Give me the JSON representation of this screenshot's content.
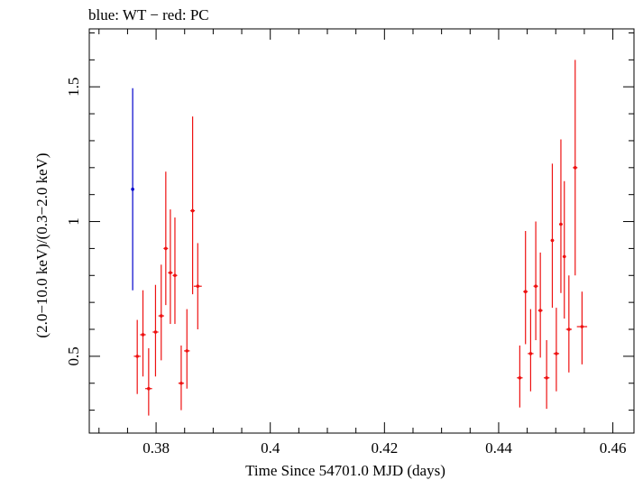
{
  "chart_data": {
    "type": "scatter",
    "title": "blue: WT − red: PC",
    "xlabel": "Time Since 54701.0 MJD (days)",
    "ylabel": "(2.0−10.0 keV)/(0.3−2.0 keV)",
    "xlim": [
      0.3683,
      0.4637
    ],
    "ylim": [
      0.215,
      1.715
    ],
    "x_ticks": [
      0.38,
      0.4,
      0.42,
      0.44,
      0.46
    ],
    "x_tick_labels": [
      "0.38",
      "0.4",
      "0.42",
      "0.44",
      "0.46"
    ],
    "y_ticks": [
      0.5,
      1,
      1.5
    ],
    "y_tick_labels": [
      "0.5",
      "1",
      "1.5"
    ],
    "grid": false,
    "series": [
      {
        "name": "WT",
        "color": "#0000cc",
        "points": [
          {
            "x": 0.3759,
            "y": 1.12,
            "ylo": 0.745,
            "yhi": 1.495,
            "xerr": 0.0
          }
        ]
      },
      {
        "name": "PC",
        "color": "#ee1111",
        "points": [
          {
            "x": 0.3767,
            "y": 0.5,
            "ylo": 0.36,
            "yhi": 0.635,
            "xerr": 0.0006
          },
          {
            "x": 0.3777,
            "y": 0.58,
            "ylo": 0.425,
            "yhi": 0.745,
            "xerr": 0.0005
          },
          {
            "x": 0.3787,
            "y": 0.38,
            "ylo": 0.28,
            "yhi": 0.53,
            "xerr": 0.0006
          },
          {
            "x": 0.3799,
            "y": 0.59,
            "ylo": 0.425,
            "yhi": 0.765,
            "xerr": 0.0005
          },
          {
            "x": 0.3809,
            "y": 0.65,
            "ylo": 0.485,
            "yhi": 0.84,
            "xerr": 0.0005
          },
          {
            "x": 0.3817,
            "y": 0.9,
            "ylo": 0.69,
            "yhi": 1.185,
            "xerr": 0.0004
          },
          {
            "x": 0.3825,
            "y": 0.81,
            "ylo": 0.62,
            "yhi": 1.045,
            "xerr": 0.0004
          },
          {
            "x": 0.3833,
            "y": 0.8,
            "ylo": 0.62,
            "yhi": 1.015,
            "xerr": 0.0004
          },
          {
            "x": 0.3844,
            "y": 0.4,
            "ylo": 0.3,
            "yhi": 0.54,
            "xerr": 0.0005
          },
          {
            "x": 0.3854,
            "y": 0.52,
            "ylo": 0.38,
            "yhi": 0.675,
            "xerr": 0.0005
          },
          {
            "x": 0.3864,
            "y": 1.04,
            "ylo": 0.73,
            "yhi": 1.39,
            "xerr": 0.0004
          },
          {
            "x": 0.3873,
            "y": 0.76,
            "ylo": 0.6,
            "yhi": 0.92,
            "xerr": 0.0007
          },
          {
            "x": 0.4437,
            "y": 0.42,
            "ylo": 0.31,
            "yhi": 0.54,
            "xerr": 0.0005
          },
          {
            "x": 0.4447,
            "y": 0.74,
            "ylo": 0.545,
            "yhi": 0.965,
            "xerr": 0.0004
          },
          {
            "x": 0.4456,
            "y": 0.51,
            "ylo": 0.37,
            "yhi": 0.675,
            "xerr": 0.0005
          },
          {
            "x": 0.4465,
            "y": 0.76,
            "ylo": 0.56,
            "yhi": 1.0,
            "xerr": 0.0004
          },
          {
            "x": 0.4473,
            "y": 0.67,
            "ylo": 0.495,
            "yhi": 0.885,
            "xerr": 0.0004
          },
          {
            "x": 0.4484,
            "y": 0.42,
            "ylo": 0.305,
            "yhi": 0.56,
            "xerr": 0.0005
          },
          {
            "x": 0.4494,
            "y": 0.93,
            "ylo": 0.68,
            "yhi": 1.215,
            "xerr": 0.0003
          },
          {
            "x": 0.4501,
            "y": 0.51,
            "ylo": 0.37,
            "yhi": 0.68,
            "xerr": 0.0005
          },
          {
            "x": 0.4509,
            "y": 0.99,
            "ylo": 0.735,
            "yhi": 1.305,
            "xerr": 0.0003
          },
          {
            "x": 0.4515,
            "y": 0.87,
            "ylo": 0.64,
            "yhi": 1.15,
            "xerr": 0.0003
          },
          {
            "x": 0.4523,
            "y": 0.6,
            "ylo": 0.44,
            "yhi": 0.8,
            "xerr": 0.0005
          },
          {
            "x": 0.4534,
            "y": 1.2,
            "ylo": 0.8,
            "yhi": 1.6,
            "xerr": 0.0004
          },
          {
            "x": 0.4546,
            "y": 0.61,
            "ylo": 0.47,
            "yhi": 0.74,
            "xerr": 0.0009
          }
        ]
      }
    ]
  }
}
